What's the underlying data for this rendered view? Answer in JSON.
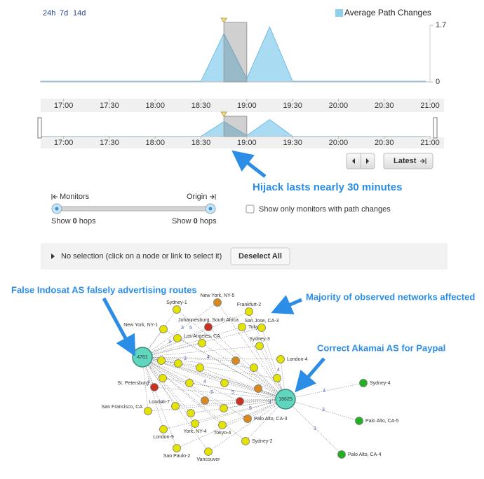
{
  "range_buttons": [
    "24h",
    "7d",
    "14d"
  ],
  "chart": {
    "type": "area",
    "legend": "Average Path Changes",
    "color": "#a9dcf3",
    "x": [
      "16:45",
      "18:30",
      "18:45",
      "19:00",
      "19:15",
      "19:30",
      "20:57"
    ],
    "values": [
      0.02,
      0.02,
      1.45,
      0.1,
      1.65,
      0.02,
      0.02
    ],
    "xlim": [
      "16:45",
      "21:00"
    ],
    "xticks": [
      "17:00",
      "17:30",
      "18:00",
      "18:30",
      "19:00",
      "19:30",
      "20:00",
      "20:30",
      "21:00"
    ],
    "ylim": [
      0,
      1.7
    ],
    "yticks": [
      0,
      1.7
    ],
    "selection": [
      "18:45",
      "19:00"
    ]
  },
  "buttons": {
    "latest": "Latest",
    "deselect": "Deselect All"
  },
  "slider": {
    "left": {
      "label": "Monitors",
      "prefix": "Show",
      "hops": 0,
      "suffix": "hops"
    },
    "right": {
      "label": "Origin",
      "prefix": "Show",
      "hops": 0,
      "suffix": "hops"
    }
  },
  "checkbox": "Show only monitors with path changes",
  "selection_info": "No selection (click on a node or link to select it)",
  "annotations": [
    "Hijack lasts nearly 30 minutes",
    "False Indosat AS falsely advertising routes",
    "Majority of observed networks affected",
    "Correct Akamai AS for Paypal"
  ],
  "graph": {
    "hubs": [
      {
        "label": "4761",
        "color": "#5fd6bd"
      },
      {
        "label": "16625",
        "color": "#5fd6bd"
      }
    ],
    "nodes": [
      {
        "label": "Sydney-4",
        "color": "#22b022"
      },
      {
        "label": "Palo Alto, CA-5",
        "color": "#22b022"
      },
      {
        "label": "Palo Alto, CA-4",
        "color": "#22b022"
      },
      {
        "label": "Sydney-1",
        "color": "#e4e400"
      },
      {
        "label": "New York, NY-5",
        "color": "#d98a1f"
      },
      {
        "label": "Frankfurt-2",
        "color": "#e4e400"
      },
      {
        "label": "New York, NY-1",
        "color": "#e4e400"
      },
      {
        "label": "Johannesburg, South Africa",
        "color": "#c8321e"
      },
      {
        "label": "Tokyo-1",
        "color": "#e4e400"
      },
      {
        "label": "San Jose, CA-3",
        "color": "#e4e400"
      },
      {
        "label": "Sydney-3",
        "color": "#e4e400"
      },
      {
        "label": "Los Angeles, CA",
        "color": "#e4e400"
      },
      {
        "label": "London-4",
        "color": "#e4e400"
      },
      {
        "label": "St. Petersburg",
        "color": "#c8321e"
      },
      {
        "label": "London-7",
        "color": "#e4e400"
      },
      {
        "label": "San Francisco, CA",
        "color": "#e4e400"
      },
      {
        "label": "Palo Alto, CA-3",
        "color": "#d98a1f"
      },
      {
        "label": "York, NY-4",
        "color": "#e4e400"
      },
      {
        "label": "Tokyo-4",
        "color": "#e4e400"
      },
      {
        "label": "London-9",
        "color": "#e4e400"
      },
      {
        "label": "Sydney-2",
        "color": "#e4e400"
      },
      {
        "label": "Sao Paulo-2",
        "color": "#e4e400"
      },
      {
        "label": "Vancouver",
        "color": "#e4e400"
      },
      {
        "color": "#e4e400"
      },
      {
        "color": "#d98a1f"
      },
      {
        "color": "#e4e400"
      },
      {
        "color": "#e4e400"
      },
      {
        "color": "#e4e400"
      },
      {
        "color": "#d98a1f"
      },
      {
        "color": "#e4e400"
      },
      {
        "color": "#e4e400"
      },
      {
        "color": "#e4e400"
      },
      {
        "color": "#e4e400"
      },
      {
        "color": "#d98a1f"
      },
      {
        "color": "#c8321e"
      },
      {
        "color": "#e4e400"
      },
      {
        "color": "#e4e400"
      },
      {
        "color": "#e4e400"
      }
    ],
    "edge_labels": [
      3,
      5,
      3,
      4,
      3,
      4,
      4,
      4,
      5,
      5,
      5,
      4,
      4,
      3,
      3,
      3
    ]
  }
}
